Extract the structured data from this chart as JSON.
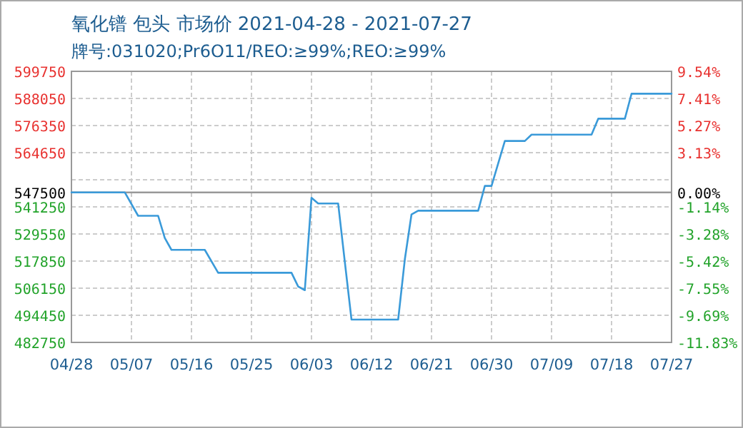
{
  "chart_data": {
    "type": "line",
    "title": "氧化镨 包头 市场价 2021-04-28 - 2021-07-27",
    "subtitle": "牌号:031020;Pr6O11/REO:≥99%;REO:≥99%",
    "series": [
      {
        "color": "#3a9ad9",
        "x": [
          "2021-04-28",
          "2021-05-06",
          "2021-05-08",
          "2021-05-11",
          "2021-05-12",
          "2021-05-13",
          "2021-05-18",
          "2021-05-20",
          "2021-05-31",
          "2021-06-01",
          "2021-06-02",
          "2021-06-03",
          "2021-06-04",
          "2021-06-07",
          "2021-06-08",
          "2021-06-09",
          "2021-06-16",
          "2021-06-17",
          "2021-06-18",
          "2021-06-19",
          "2021-06-28",
          "2021-06-29",
          "2021-06-30",
          "2021-07-02",
          "2021-07-05",
          "2021-07-06",
          "2021-07-15",
          "2021-07-16",
          "2021-07-20",
          "2021-07-21",
          "2021-07-27"
        ],
        "values": [
          547500,
          547500,
          537400,
          537400,
          527800,
          522700,
          522700,
          512800,
          512800,
          506900,
          505300,
          545200,
          542700,
          542700,
          517500,
          492600,
          492600,
          518600,
          538000,
          539600,
          539600,
          550300,
          550300,
          569700,
          569700,
          572400,
          572400,
          579300,
          579300,
          590100,
          590100
        ]
      }
    ],
    "xlim": [
      "2021-04-28",
      "2021-07-27"
    ],
    "xticks": [
      {
        "value": "2021-04-28",
        "label": "04/28"
      },
      {
        "value": "2021-05-07",
        "label": "05/07"
      },
      {
        "value": "2021-05-16",
        "label": "05/16"
      },
      {
        "value": "2021-05-25",
        "label": "05/25"
      },
      {
        "value": "2021-06-03",
        "label": "06/03"
      },
      {
        "value": "2021-06-12",
        "label": "06/12"
      },
      {
        "value": "2021-06-21",
        "label": "06/21"
      },
      {
        "value": "2021-06-30",
        "label": "06/30"
      },
      {
        "value": "2021-07-09",
        "label": "07/09"
      },
      {
        "value": "2021-07-18",
        "label": "07/18"
      },
      {
        "value": "2021-07-27",
        "label": "07/27"
      }
    ],
    "ylim": [
      482750,
      599750
    ],
    "yticks": [
      599750,
      588050,
      576350,
      564650,
      {
        "value": 552950,
        "label": null
      },
      547500,
      541250,
      529550,
      517850,
      506150,
      494450,
      482750
    ],
    "y2lim": [
      -11.83,
      9.54
    ],
    "y2ticks": [
      {
        "value": 9.54,
        "label": "9.54%"
      },
      {
        "value": 7.41,
        "label": "7.41%"
      },
      {
        "value": 5.27,
        "label": "5.27%"
      },
      {
        "value": 3.13,
        "label": "3.13%"
      },
      {
        "value": 1.0,
        "label": null
      },
      {
        "value": 0,
        "label": "0.00%"
      },
      {
        "value": -1.14,
        "label": "-1.14%"
      },
      {
        "value": -3.28,
        "label": "-3.28%"
      },
      {
        "value": -5.42,
        "label": "-5.42%"
      },
      {
        "value": -7.55,
        "label": "-7.55%"
      },
      {
        "value": -9.69,
        "label": "-9.69%"
      },
      {
        "value": -11.83,
        "label": "-11.83%"
      }
    ],
    "ref_lines": [
      {
        "axis": "y",
        "value": 547500,
        "color": "#999999"
      }
    ],
    "grid": true,
    "marker": "none",
    "line_style": "solid"
  }
}
